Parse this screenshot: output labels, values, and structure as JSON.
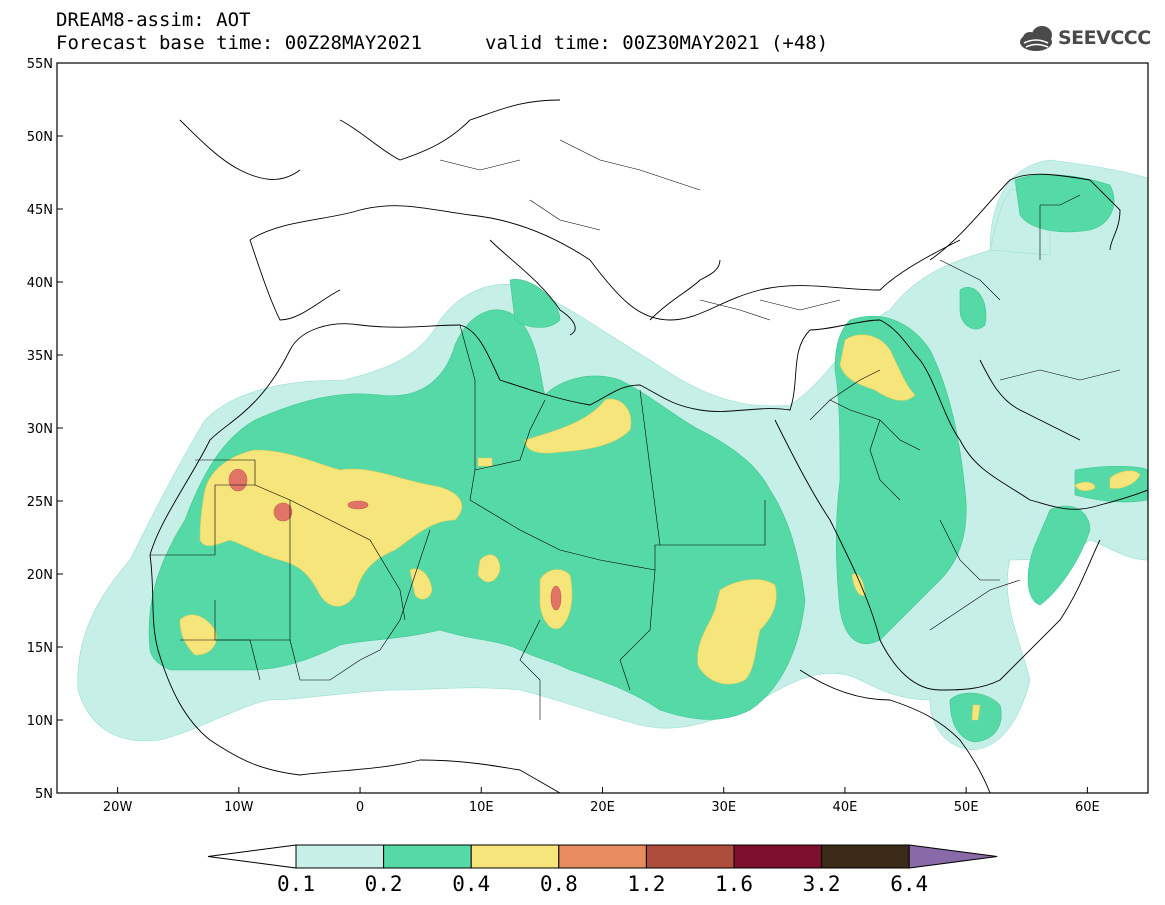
{
  "header": {
    "line1": "DREAM8-assim: AOT",
    "line2a": "Forecast base time: 00Z28MAY2021",
    "line2b": "valid time: 00Z30MAY2021 (+48)",
    "logo_text": "SEEVCCC"
  },
  "map": {
    "lat_range": [
      5,
      55
    ],
    "lon_range": [
      -25,
      65
    ],
    "lat_ticks": [
      "55N",
      "50N",
      "45N",
      "40N",
      "35N",
      "30N",
      "25N",
      "20N",
      "15N",
      "10N",
      "5N"
    ],
    "lon_ticks": [
      "20W",
      "10W",
      "0",
      "10E",
      "20E",
      "30E",
      "40E",
      "50E",
      "60E"
    ]
  },
  "colorbar": {
    "colors": [
      "#ffffff",
      "#c6efe8",
      "#55d9a7",
      "#f5e57a",
      "#e68c5f",
      "#ae4d3c",
      "#7d0f2e",
      "#3a2a17",
      "#8a69a8"
    ],
    "labels": [
      "0.1",
      "0.2",
      "0.4",
      "0.8",
      "1.2",
      "1.6",
      "3.2",
      "6.4"
    ]
  }
}
